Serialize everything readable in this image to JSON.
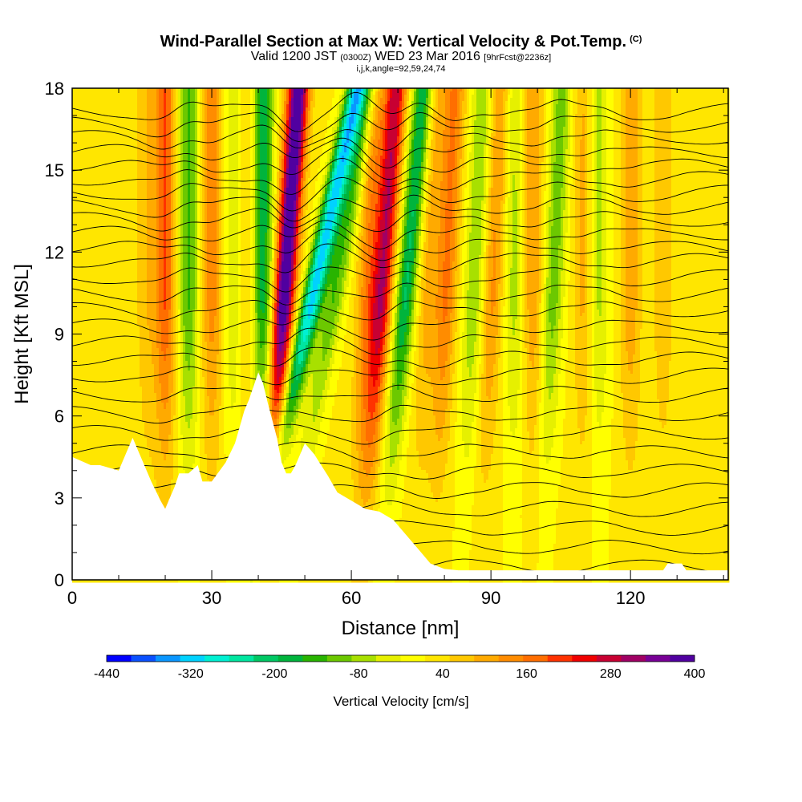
{
  "title": {
    "line1": "Wind-Parallel Section at Max W: Vertical Velocity & Pot.Temp.",
    "line1_sup": "(C)",
    "line2_a": "Valid 1200 JST",
    "line2_b": "(0300Z)",
    "line2_c": "WED 23 Mar 2016",
    "line2_d": "[9hrFcst@2236z]",
    "line3": "i,j,k,angle=92,59,24,74"
  },
  "chart_data": {
    "type": "heatmap",
    "xlabel": "Distance [nm]",
    "ylabel": "Height [Kft MSL]",
    "xlim": [
      0,
      141
    ],
    "ylim": [
      0,
      18
    ],
    "xticks": [
      0,
      30,
      60,
      90,
      120
    ],
    "yticks": [
      0,
      3,
      6,
      9,
      12,
      15,
      18
    ],
    "colorbar": {
      "label": "Vertical Velocity [cm/s]",
      "tick_labels": [
        "-440",
        "-320",
        "-200",
        "-80",
        "40",
        "160",
        "280",
        "400"
      ],
      "tick_values": [
        -440,
        -320,
        -200,
        -80,
        40,
        160,
        280,
        400
      ],
      "range": [
        -440,
        400
      ],
      "colors": [
        "#0000ff",
        "#0a50ff",
        "#0a96ff",
        "#00d2ff",
        "#00f0d2",
        "#00e6a0",
        "#00c864",
        "#00b43c",
        "#28b400",
        "#6cc800",
        "#a8e000",
        "#e6f000",
        "#ffff00",
        "#ffe600",
        "#ffc800",
        "#ffaa00",
        "#ff8c00",
        "#ff6e00",
        "#ff3200",
        "#f00000",
        "#c80032",
        "#a00064",
        "#780096",
        "#5000a0"
      ]
    },
    "terrain_profile": {
      "x": [
        0,
        4,
        6,
        10,
        13,
        17,
        19,
        20,
        21,
        22,
        23,
        25,
        27,
        28,
        30,
        33,
        35,
        37,
        38,
        40,
        41,
        42,
        44,
        45,
        46,
        47,
        48,
        50,
        52,
        55,
        57,
        60,
        63,
        66,
        69,
        71,
        73,
        75,
        77,
        80,
        83,
        87,
        90,
        95,
        100,
        105,
        110,
        115,
        120,
        127,
        128,
        131,
        132,
        141
      ],
      "y": [
        4.5,
        4.2,
        4.2,
        4.0,
        5.2,
        3.6,
        2.9,
        2.6,
        3.0,
        3.4,
        3.9,
        3.9,
        4.2,
        3.6,
        3.6,
        4.3,
        5.0,
        6.2,
        6.6,
        7.6,
        7.2,
        6.5,
        5.2,
        4.3,
        3.9,
        3.9,
        4.2,
        5.0,
        4.6,
        3.8,
        3.2,
        2.9,
        2.6,
        2.5,
        2.2,
        1.8,
        1.4,
        1.0,
        0.6,
        0.4,
        0.35,
        0.35,
        0.35,
        0.35,
        0.35,
        0.35,
        0.35,
        0.35,
        0.35,
        0.35,
        0.6,
        0.6,
        0.35,
        0.35
      ]
    },
    "w_cores": [
      {
        "x": 16,
        "w": 60,
        "tilt": 0
      },
      {
        "x": 20,
        "w": 170,
        "tilt": 0
      },
      {
        "x": 25,
        "w": -150,
        "tilt": 0
      },
      {
        "x": 30,
        "w": 120,
        "tilt": 0
      },
      {
        "x": 35,
        "w": -100,
        "tilt": 0
      },
      {
        "x": 37,
        "w": 80,
        "tilt": 0
      },
      {
        "x": 41,
        "w": -200,
        "tilt": 0
      },
      {
        "x": 45,
        "w": 400,
        "tilt": 0.08
      },
      {
        "x": 50,
        "w": -340,
        "tilt": 0.25
      },
      {
        "x": 55,
        "w": -140,
        "tilt": 0.2
      },
      {
        "x": 63,
        "w": 120,
        "tilt": 0.05
      },
      {
        "x": 66,
        "w": 270,
        "tilt": 0.08
      },
      {
        "x": 71,
        "w": -220,
        "tilt": 0.1
      },
      {
        "x": 76,
        "w": 80,
        "tilt": 0.05
      },
      {
        "x": 80,
        "w": 140,
        "tilt": 0.05
      },
      {
        "x": 86,
        "w": -110,
        "tilt": 0.05
      },
      {
        "x": 90,
        "w": 110,
        "tilt": 0.05
      },
      {
        "x": 95,
        "w": -90,
        "tilt": 0
      },
      {
        "x": 99,
        "w": 100,
        "tilt": 0
      },
      {
        "x": 103,
        "w": -130,
        "tilt": 0.05
      },
      {
        "x": 110,
        "w": 80,
        "tilt": 0
      },
      {
        "x": 113,
        "w": -90,
        "tilt": 0
      },
      {
        "x": 120,
        "w": 90,
        "tilt": 0
      },
      {
        "x": 127,
        "w": 60,
        "tilt": 0
      }
    ],
    "theta_contours": {
      "levels": [
        -8,
        -7,
        -6,
        -5,
        -4,
        -3,
        -2,
        -1,
        0,
        1,
        2,
        3,
        4,
        5,
        6,
        7,
        8,
        9,
        10,
        11,
        12,
        13,
        14,
        15,
        16,
        17,
        18,
        19,
        20
      ],
      "base_heights": [
        0.5,
        1.2,
        1.9,
        2.6,
        3.3,
        4.0,
        4.7,
        5.4,
        6.1,
        6.8,
        7.5,
        8.1,
        8.7,
        9.3,
        9.9,
        10.5,
        11.1,
        11.7,
        12.2,
        12.7,
        13.2,
        13.7,
        14.2,
        14.7,
        15.2,
        15.7,
        16.2,
        16.7,
        17.2
      ]
    }
  }
}
